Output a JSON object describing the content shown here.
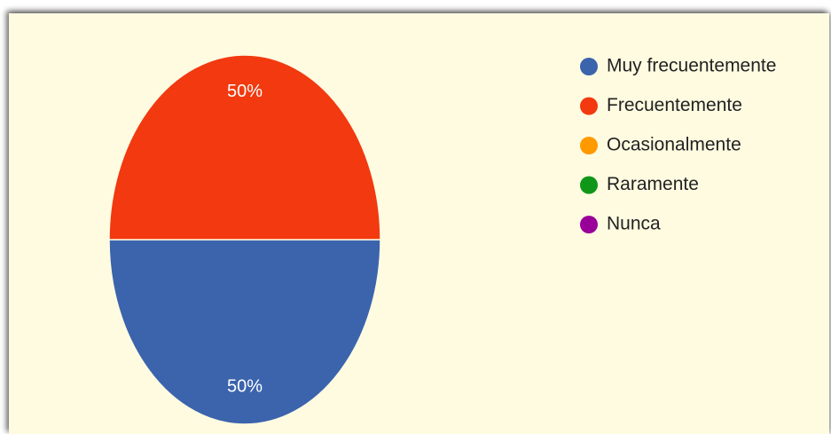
{
  "chart_data": {
    "type": "pie",
    "categories": [
      "Muy frecuentemente",
      "Frecuentemente",
      "Ocasionalmente",
      "Raramente",
      "Nunca"
    ],
    "values": [
      50,
      50,
      0,
      0,
      0
    ],
    "value_labels": [
      "50%",
      "50%",
      null,
      null,
      null
    ],
    "colors": [
      "#3b64ad",
      "#f2390f",
      "#ff9900",
      "#109618",
      "#990099"
    ],
    "legend": "right"
  }
}
